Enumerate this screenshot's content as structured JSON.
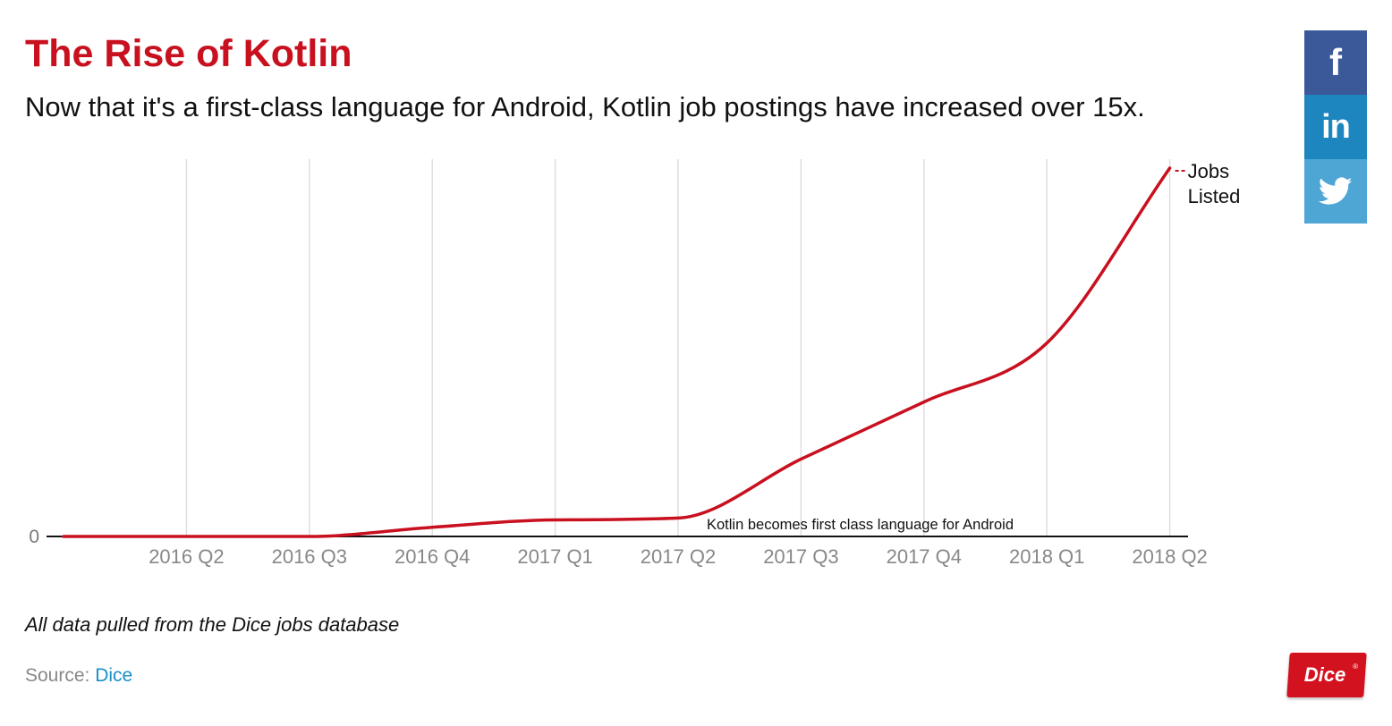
{
  "header": {
    "title": "The Rise of Kotlin",
    "subtitle": "Now that it's a first-class language for Android, Kotlin job postings have increased over 15x."
  },
  "chart_data": {
    "type": "line",
    "categories": [
      "",
      "2016 Q2",
      "2016 Q3",
      "2016 Q4",
      "2017 Q1",
      "2017 Q2",
      "2017 Q3",
      "2017 Q4",
      "2018 Q1",
      "2018 Q2"
    ],
    "series": [
      {
        "name": "Jobs Listed",
        "color": "#c8101f",
        "values": [
          0,
          0,
          0,
          2.5,
          4.5,
          5,
          21,
          36.5,
          52.5,
          100
        ]
      }
    ],
    "y_tick_labels": [
      "0"
    ],
    "ylim": [
      0,
      100
    ],
    "grid": "vertical",
    "annotation": {
      "text": "Kotlin becomes first class language for Android",
      "at_category": "2017 Q2"
    },
    "end_label": [
      "Jobs",
      "Listed"
    ]
  },
  "footer": {
    "note": "All data pulled from the Dice jobs database",
    "source_label": "Source: ",
    "source_link": "Dice"
  },
  "social": {
    "facebook_icon": "facebook-icon",
    "linkedin_icon": "linkedin-icon",
    "twitter_icon": "twitter-icon",
    "facebook_glyph": "f",
    "linkedin_glyph": "in"
  },
  "logo": {
    "text": "Dice",
    "reg": "®"
  }
}
